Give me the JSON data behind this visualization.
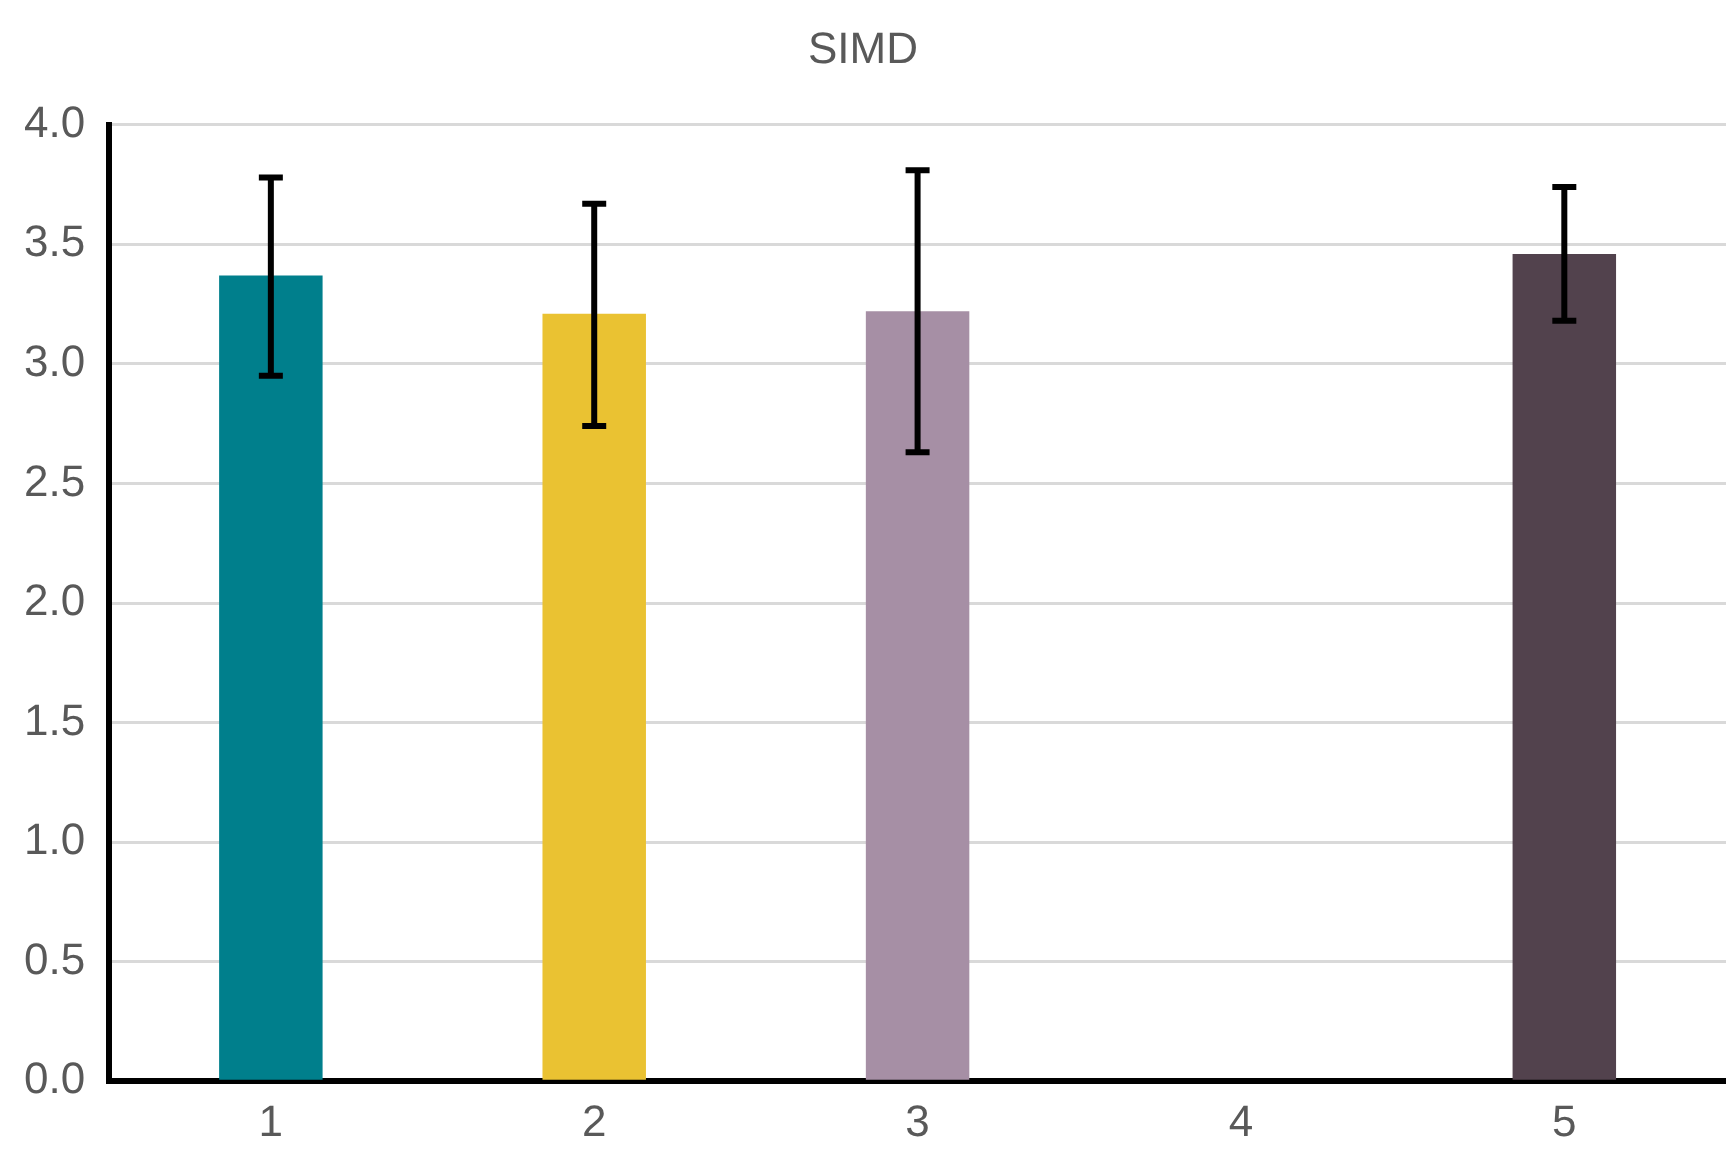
{
  "chart_data": {
    "type": "bar",
    "title": "SIMD",
    "categories": [
      "1",
      "2",
      "3",
      "4",
      "5"
    ],
    "values": [
      3.37,
      3.21,
      3.22,
      null,
      3.46
    ],
    "colors": [
      "#007f8c",
      "#eac232",
      "#a68fa5",
      "#ffffff",
      "#52424d"
    ],
    "errors": [
      [
        2.95,
        3.78
      ],
      [
        2.74,
        3.67
      ],
      [
        2.63,
        3.81
      ],
      null,
      [
        3.18,
        3.74
      ]
    ],
    "ylim": [
      0,
      4
    ],
    "yticks": [
      {
        "value": 0,
        "label": "0.0"
      },
      0.5,
      {
        "value": 1,
        "label": "1.0"
      },
      1.5,
      {
        "value": 2,
        "label": "2.0"
      },
      2.5,
      {
        "value": 3,
        "label": "3.0"
      },
      3.5,
      {
        "value": 4,
        "label": "4.0"
      }
    ],
    "grid": "y",
    "legend": false
  }
}
